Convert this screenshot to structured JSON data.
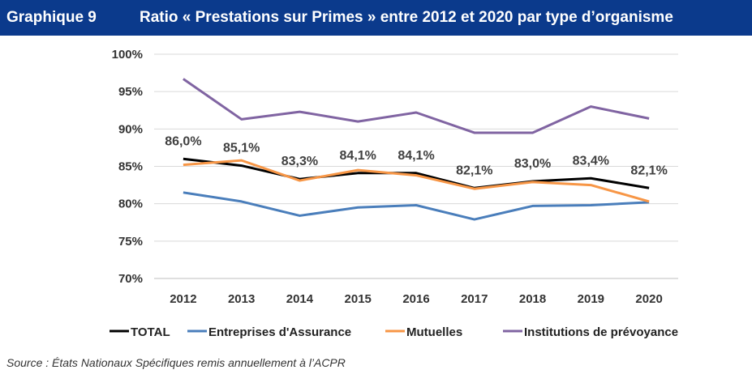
{
  "header": {
    "number": "Graphique 9",
    "title": "Ratio « Prestations sur Primes » entre 2012 et 2020 par type d’organisme"
  },
  "source": "Source : États Nationaux Spécifiques remis annuellement à l’ACPR",
  "chart_data": {
    "type": "line",
    "title": "Ratio « Prestations sur Primes » entre 2012 et 2020 par type d’organisme",
    "categories": [
      "2012",
      "2013",
      "2014",
      "2015",
      "2016",
      "2017",
      "2018",
      "2019",
      "2020"
    ],
    "ylim": [
      70,
      100
    ],
    "yticks": [
      "70%",
      "75%",
      "80%",
      "85%",
      "90%",
      "95%",
      "100%"
    ],
    "grid": true,
    "legend": "bottom",
    "series": [
      {
        "name": "TOTAL",
        "color": "#000000",
        "values": [
          86.0,
          85.1,
          83.3,
          84.1,
          84.1,
          82.1,
          83.0,
          83.4,
          82.1
        ],
        "labels": [
          "86,0%",
          "85,1%",
          "83,3%",
          "84,1%",
          "84,1%",
          "82,1%",
          "83,0%",
          "83,4%",
          "82,1%"
        ]
      },
      {
        "name": "Entreprises d'Assurance",
        "color": "#4a7ebb",
        "values": [
          81.5,
          80.3,
          78.4,
          79.5,
          79.8,
          77.9,
          79.7,
          79.8,
          80.2
        ]
      },
      {
        "name": "Mutuelles",
        "color": "#f79646",
        "values": [
          85.2,
          85.8,
          83.1,
          84.5,
          83.8,
          82.0,
          82.9,
          82.5,
          80.3
        ]
      },
      {
        "name": "Institutions de prévoyance",
        "color": "#8064a2",
        "values": [
          96.7,
          91.3,
          92.3,
          91.0,
          92.2,
          89.5,
          89.5,
          93.0,
          91.4
        ]
      }
    ]
  }
}
